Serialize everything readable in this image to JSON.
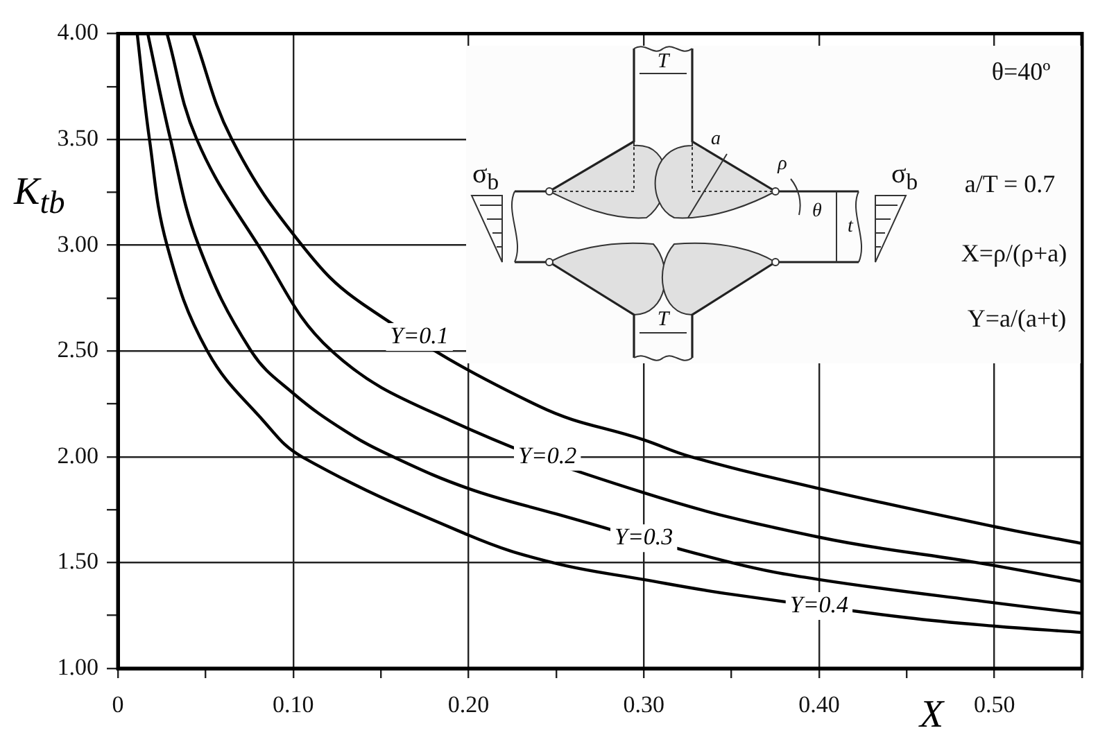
{
  "chart_data": {
    "type": "line",
    "xlabel": "X",
    "ylabel": "K$_{tb}$",
    "series": [
      {
        "name": "Y=0.1",
        "color": "#000000",
        "x": [
          0.043,
          0.065,
          0.105,
          0.14,
          0.24,
          0.3,
          0.327,
          0.4,
          0.5,
          0.55
        ],
        "values": [
          4.0,
          3.5,
          3.0,
          2.72,
          2.24,
          2.08,
          2.0,
          1.85,
          1.67,
          1.59
        ]
      },
      {
        "name": "Y=0.2",
        "color": "#000000",
        "x": [
          0.028,
          0.045,
          0.08,
          0.122,
          0.19,
          0.3,
          0.4,
          0.49,
          0.55
        ],
        "values": [
          4.0,
          3.5,
          3.0,
          2.5,
          2.17,
          1.83,
          1.62,
          1.5,
          1.41
        ]
      },
      {
        "name": "Y=0.3",
        "color": "#000000",
        "x": [
          0.017,
          0.03,
          0.046,
          0.076,
          0.1,
          0.13,
          0.157,
          0.2,
          0.25,
          0.35,
          0.4,
          0.5,
          0.55
        ],
        "values": [
          4.0,
          3.5,
          3.0,
          2.5,
          2.3,
          2.12,
          2.0,
          1.85,
          1.73,
          1.5,
          1.42,
          1.31,
          1.26
        ]
      },
      {
        "name": "Y=0.4",
        "color": "#000000",
        "x": [
          0.011,
          0.018,
          0.028,
          0.051,
          0.083,
          0.105,
          0.2,
          0.248,
          0.3,
          0.35,
          0.45,
          0.5,
          0.55
        ],
        "values": [
          4.0,
          3.5,
          3.0,
          2.5,
          2.17,
          2.0,
          1.63,
          1.5,
          1.42,
          1.35,
          1.24,
          1.2,
          1.17
        ]
      }
    ],
    "xlim": [
      0,
      0.55
    ],
    "xticks": [
      0,
      {
        "value": 0.05,
        "label": null
      },
      {
        "value": 0.1,
        "label": "0.10"
      },
      {
        "value": 0.15,
        "label": null
      },
      {
        "value": 0.2,
        "label": "0.20"
      },
      {
        "value": 0.25,
        "label": null
      },
      {
        "value": 0.3,
        "label": "0.30"
      },
      {
        "value": 0.35,
        "label": null
      },
      {
        "value": 0.4,
        "label": "0.40"
      },
      {
        "value": 0.45,
        "label": null
      },
      {
        "value": 0.5,
        "label": "0.50"
      },
      {
        "value": 0.55,
        "label": null
      }
    ],
    "ylim": [
      1,
      4
    ],
    "yticks": [
      {
        "value": 1,
        "label": "1.00"
      },
      {
        "value": 1.25,
        "label": null
      },
      {
        "value": 1.5,
        "label": "1.50"
      },
      {
        "value": 1.75,
        "label": null
      },
      {
        "value": 2,
        "label": "2.00"
      },
      {
        "value": 2.25,
        "label": null
      },
      {
        "value": 2.5,
        "label": "2.50"
      },
      {
        "value": 2.75,
        "label": null
      },
      {
        "value": 3,
        "label": "3.00"
      },
      {
        "value": 3.25,
        "label": null
      },
      {
        "value": 3.5,
        "label": "3.50"
      },
      {
        "value": 3.75,
        "label": null
      },
      {
        "value": 4,
        "label": "4.00"
      }
    ],
    "grid": true,
    "legend": false,
    "annotations": [
      "θ=40º",
      "a/T = 0.7",
      "X=ρ/(ρ+a)",
      "Y=a/(a+t)",
      "σ$_{b}$",
      "σ$_{b}$",
      "T",
      "T",
      "a",
      "ρ",
      "θ",
      "t"
    ]
  }
}
